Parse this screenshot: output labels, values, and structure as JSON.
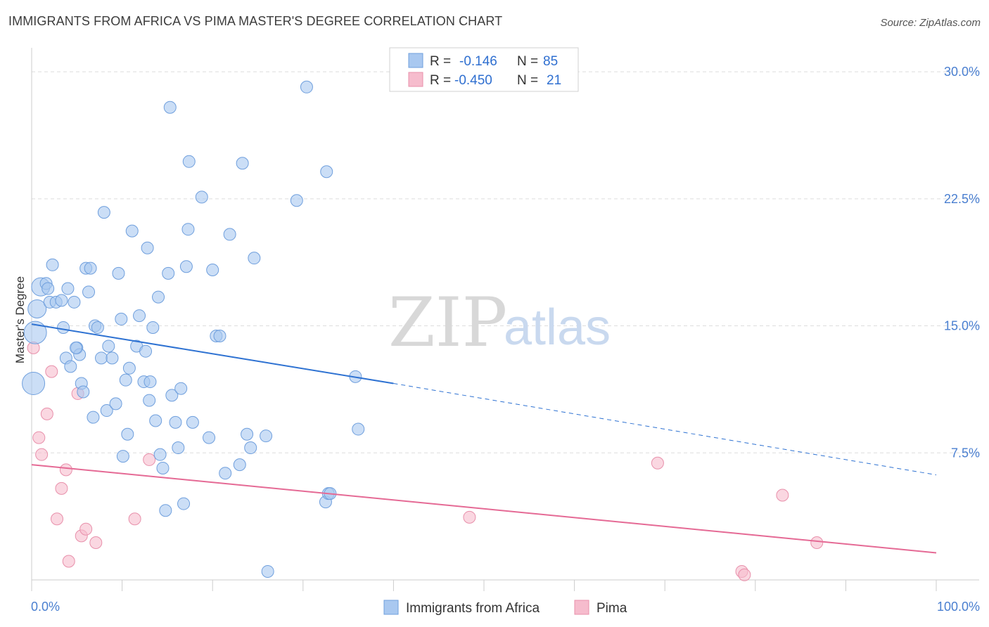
{
  "title": "IMMIGRANTS FROM AFRICA VS PIMA MASTER'S DEGREE CORRELATION CHART",
  "source": "Source: ZipAtlas.com",
  "watermark": {
    "zip": "ZIP",
    "atlas": "atlas"
  },
  "colors": {
    "blue_fill": "#a9c8f0",
    "blue_stroke": "#6f9fdd",
    "blue_line": "#2e72d2",
    "pink_fill": "#f6bccd",
    "pink_stroke": "#e890ab",
    "pink_line": "#e56a95",
    "grid": "#dddddd",
    "tick_text": "#4a7fd0"
  },
  "legend_top": {
    "rows": [
      {
        "r_label": "R =",
        "r_value": "-0.146",
        "n_label": "N =",
        "n_value": "85"
      },
      {
        "r_label": "R =",
        "r_value": "-0.450",
        "n_label": "N =",
        "n_value": "21"
      }
    ]
  },
  "legend_bottom": [
    "Immigrants from Africa",
    "Pima"
  ],
  "chart_data": {
    "type": "scatter",
    "title": "IMMIGRANTS FROM AFRICA VS PIMA MASTER'S DEGREE CORRELATION CHART",
    "xlabel": "",
    "ylabel": "Master's Degree",
    "xlim": [
      0,
      100
    ],
    "ylim": [
      0,
      31
    ],
    "x_tick_labels": [
      "0.0%",
      "100.0%"
    ],
    "y_ticks": [
      7.5,
      15.0,
      22.5,
      30.0
    ],
    "y_tick_labels": [
      "7.5%",
      "15.0%",
      "22.5%",
      "30.0%"
    ],
    "grid": true,
    "series": [
      {
        "name": "Immigrants from Africa",
        "r": -0.146,
        "n": 85,
        "trend": {
          "x0": 0,
          "y0": 15.1,
          "x1": 40,
          "y1": 11.6,
          "x_dash_end": 100,
          "y_dash_end": 6.2
        },
        "points": [
          {
            "x": 0.2,
            "y": 11.6,
            "s": 3
          },
          {
            "x": 0.4,
            "y": 14.6,
            "s": 3
          },
          {
            "x": 0.6,
            "y": 16.0,
            "s": 2
          },
          {
            "x": 1.0,
            "y": 17.3,
            "s": 2
          },
          {
            "x": 1.6,
            "y": 17.5,
            "s": 1
          },
          {
            "x": 1.8,
            "y": 17.2,
            "s": 1
          },
          {
            "x": 2.3,
            "y": 18.6,
            "s": 1
          },
          {
            "x": 2.0,
            "y": 16.4,
            "s": 1
          },
          {
            "x": 2.7,
            "y": 16.4,
            "s": 1
          },
          {
            "x": 3.3,
            "y": 16.5,
            "s": 1
          },
          {
            "x": 3.5,
            "y": 14.9,
            "s": 1
          },
          {
            "x": 4.0,
            "y": 17.2,
            "s": 1
          },
          {
            "x": 3.8,
            "y": 13.1,
            "s": 1
          },
          {
            "x": 4.3,
            "y": 12.6,
            "s": 1
          },
          {
            "x": 4.7,
            "y": 16.4,
            "s": 1
          },
          {
            "x": 5.0,
            "y": 13.7,
            "s": 1
          },
          {
            "x": 5.3,
            "y": 13.3,
            "s": 1
          },
          {
            "x": 5.5,
            "y": 11.6,
            "s": 1
          },
          {
            "x": 5.7,
            "y": 11.1,
            "s": 1
          },
          {
            "x": 6.0,
            "y": 18.4,
            "s": 1
          },
          {
            "x": 6.3,
            "y": 17.0,
            "s": 1
          },
          {
            "x": 6.5,
            "y": 18.4,
            "s": 1
          },
          {
            "x": 6.8,
            "y": 9.6,
            "s": 1
          },
          {
            "x": 7.0,
            "y": 15.0,
            "s": 1
          },
          {
            "x": 7.3,
            "y": 14.9,
            "s": 1
          },
          {
            "x": 7.7,
            "y": 13.1,
            "s": 1
          },
          {
            "x": 8.0,
            "y": 21.7,
            "s": 1
          },
          {
            "x": 8.3,
            "y": 10.0,
            "s": 1
          },
          {
            "x": 8.5,
            "y": 13.8,
            "s": 1
          },
          {
            "x": 8.9,
            "y": 13.1,
            "s": 1
          },
          {
            "x": 9.3,
            "y": 10.4,
            "s": 1
          },
          {
            "x": 9.6,
            "y": 18.1,
            "s": 1
          },
          {
            "x": 9.9,
            "y": 15.4,
            "s": 1
          },
          {
            "x": 10.1,
            "y": 7.3,
            "s": 1
          },
          {
            "x": 10.4,
            "y": 11.8,
            "s": 1
          },
          {
            "x": 10.6,
            "y": 8.6,
            "s": 1
          },
          {
            "x": 10.8,
            "y": 12.5,
            "s": 1
          },
          {
            "x": 11.1,
            "y": 20.6,
            "s": 1
          },
          {
            "x": 11.6,
            "y": 13.8,
            "s": 1
          },
          {
            "x": 11.9,
            "y": 15.6,
            "s": 1
          },
          {
            "x": 12.4,
            "y": 11.7,
            "s": 1
          },
          {
            "x": 12.6,
            "y": 13.5,
            "s": 1
          },
          {
            "x": 12.8,
            "y": 19.6,
            "s": 1
          },
          {
            "x": 13.1,
            "y": 11.7,
            "s": 1
          },
          {
            "x": 13.0,
            "y": 10.6,
            "s": 1
          },
          {
            "x": 13.4,
            "y": 14.9,
            "s": 1
          },
          {
            "x": 13.7,
            "y": 9.4,
            "s": 1
          },
          {
            "x": 14.0,
            "y": 16.7,
            "s": 1
          },
          {
            "x": 14.2,
            "y": 7.4,
            "s": 1
          },
          {
            "x": 14.5,
            "y": 6.6,
            "s": 1
          },
          {
            "x": 14.8,
            "y": 4.1,
            "s": 1
          },
          {
            "x": 15.1,
            "y": 18.1,
            "s": 1
          },
          {
            "x": 15.3,
            "y": 27.9,
            "s": 1
          },
          {
            "x": 15.5,
            "y": 10.9,
            "s": 1
          },
          {
            "x": 15.9,
            "y": 9.3,
            "s": 1
          },
          {
            "x": 16.2,
            "y": 7.8,
            "s": 1
          },
          {
            "x": 16.5,
            "y": 11.3,
            "s": 1
          },
          {
            "x": 16.8,
            "y": 4.5,
            "s": 1
          },
          {
            "x": 17.1,
            "y": 18.5,
            "s": 1
          },
          {
            "x": 17.3,
            "y": 20.7,
            "s": 1
          },
          {
            "x": 17.4,
            "y": 24.7,
            "s": 1
          },
          {
            "x": 17.8,
            "y": 9.3,
            "s": 1
          },
          {
            "x": 18.8,
            "y": 22.6,
            "s": 1
          },
          {
            "x": 19.6,
            "y": 8.4,
            "s": 1
          },
          {
            "x": 20.0,
            "y": 18.3,
            "s": 1
          },
          {
            "x": 20.4,
            "y": 14.4,
            "s": 1
          },
          {
            "x": 21.4,
            "y": 6.3,
            "s": 1
          },
          {
            "x": 21.9,
            "y": 20.4,
            "s": 1
          },
          {
            "x": 23.0,
            "y": 6.8,
            "s": 1
          },
          {
            "x": 23.3,
            "y": 24.6,
            "s": 1
          },
          {
            "x": 23.8,
            "y": 8.6,
            "s": 1
          },
          {
            "x": 24.2,
            "y": 7.8,
            "s": 1
          },
          {
            "x": 24.6,
            "y": 19.0,
            "s": 1
          },
          {
            "x": 25.9,
            "y": 8.5,
            "s": 1
          },
          {
            "x": 26.1,
            "y": 0.5,
            "s": 1
          },
          {
            "x": 29.3,
            "y": 22.4,
            "s": 1
          },
          {
            "x": 30.4,
            "y": 29.1,
            "s": 1
          },
          {
            "x": 32.5,
            "y": 4.6,
            "s": 1
          },
          {
            "x": 32.8,
            "y": 5.1,
            "s": 1
          },
          {
            "x": 32.6,
            "y": 24.1,
            "s": 1
          },
          {
            "x": 35.8,
            "y": 12.0,
            "s": 1
          },
          {
            "x": 36.1,
            "y": 8.9,
            "s": 1
          },
          {
            "x": 33.0,
            "y": 5.1,
            "s": 1
          },
          {
            "x": 20.8,
            "y": 14.4,
            "s": 1
          },
          {
            "x": 4.9,
            "y": 13.7,
            "s": 1
          }
        ]
      },
      {
        "name": "Pima",
        "r": -0.45,
        "n": 21,
        "trend": {
          "x0": 0,
          "y0": 6.8,
          "x1": 100,
          "y1": 1.6
        },
        "points": [
          {
            "x": 0.2,
            "y": 13.7,
            "s": 1
          },
          {
            "x": 0.8,
            "y": 8.4,
            "s": 1
          },
          {
            "x": 1.1,
            "y": 7.4,
            "s": 1
          },
          {
            "x": 1.7,
            "y": 9.8,
            "s": 1
          },
          {
            "x": 2.2,
            "y": 12.3,
            "s": 1
          },
          {
            "x": 2.8,
            "y": 3.6,
            "s": 1
          },
          {
            "x": 3.3,
            "y": 5.4,
            "s": 1
          },
          {
            "x": 3.8,
            "y": 6.5,
            "s": 1
          },
          {
            "x": 4.1,
            "y": 1.1,
            "s": 1
          },
          {
            "x": 5.1,
            "y": 11.0,
            "s": 1
          },
          {
            "x": 5.5,
            "y": 2.6,
            "s": 1
          },
          {
            "x": 6.0,
            "y": 3.0,
            "s": 1
          },
          {
            "x": 7.1,
            "y": 2.2,
            "s": 1
          },
          {
            "x": 11.4,
            "y": 3.6,
            "s": 1
          },
          {
            "x": 13.0,
            "y": 7.1,
            "s": 1
          },
          {
            "x": 48.4,
            "y": 3.7,
            "s": 1
          },
          {
            "x": 69.2,
            "y": 6.9,
            "s": 1
          },
          {
            "x": 78.5,
            "y": 0.5,
            "s": 1
          },
          {
            "x": 78.8,
            "y": 0.3,
            "s": 1
          },
          {
            "x": 83.0,
            "y": 5.0,
            "s": 1
          },
          {
            "x": 86.8,
            "y": 2.2,
            "s": 1
          }
        ]
      }
    ]
  }
}
